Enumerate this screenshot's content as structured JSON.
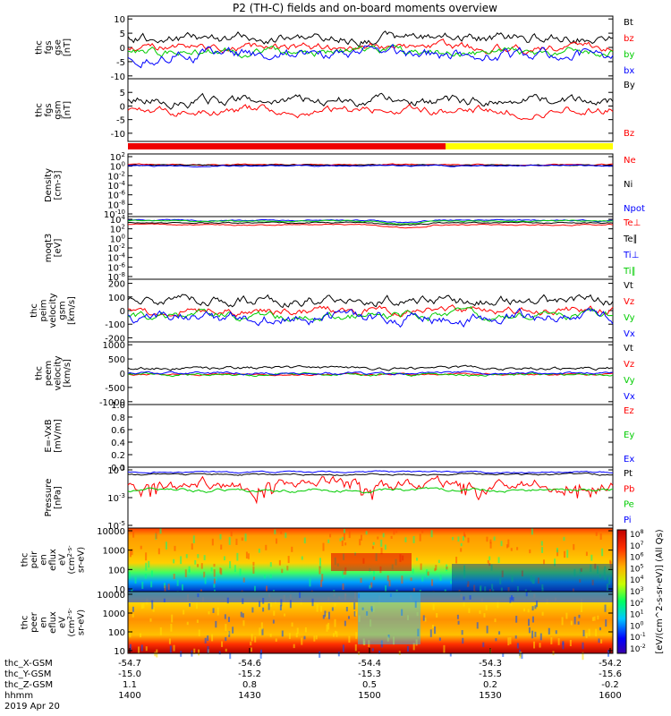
{
  "title": "P2 (TH-C) fields and on-board moments overview",
  "chart_data": {
    "type": "line",
    "title": "P2 (TH-C) fields and on-board moments overview",
    "panels": [
      {
        "ylabel": [
          "thc",
          "fgs",
          "gse",
          "[nT]"
        ],
        "ticks": [
          "10",
          "5",
          "0",
          "-5",
          "-10"
        ],
        "tickvals": [
          10,
          5,
          0,
          -5,
          -10
        ],
        "ylim": [
          -11,
          11
        ],
        "legend": [
          {
            "name": "Bt",
            "color": "#000000"
          },
          {
            "name": "bz",
            "color": "#ff0000"
          },
          {
            "name": "by",
            "color": "#00cc00"
          },
          {
            "name": "bx",
            "color": "#0000ff"
          }
        ]
      },
      {
        "ylabel": [
          "thc",
          "fgs",
          "gsm",
          "[nT]"
        ],
        "ticks": [
          "5",
          "0",
          "-5",
          "-10"
        ],
        "tickvals": [
          5,
          0,
          -5,
          -10
        ],
        "ylim": [
          -13,
          10
        ],
        "legend": [
          {
            "name": "By",
            "color": "#000000"
          },
          {
            "name": "Bz",
            "color": "#ff0000"
          }
        ]
      },
      {
        "ylabel": [
          "Density",
          "[cm-3]"
        ],
        "ticks": [
          "10^2",
          "10^0",
          "10^-2",
          "10^-4",
          "10^-6",
          "10^-8",
          "10^-10"
        ],
        "legend": [
          {
            "name": "Ne",
            "color": "#ff0000"
          },
          {
            "name": "Ni",
            "color": "#000000"
          },
          {
            "name": "Npot",
            "color": "#0000ff"
          }
        ]
      },
      {
        "ylabel": [
          "moqt3",
          "[eV]"
        ],
        "ticks": [
          "10^4",
          "10^2",
          "10^0",
          "10^-2",
          "10^-4",
          "10^-6",
          "10^-8"
        ],
        "legend": [
          {
            "name": "Te⊥",
            "color": "#ff0000"
          },
          {
            "name": "Te∥",
            "color": "#000000"
          },
          {
            "name": "Ti⊥",
            "color": "#0000ff"
          },
          {
            "name": "Ti∥",
            "color": "#00cc00"
          }
        ]
      },
      {
        "ylabel": [
          "thc",
          "peim",
          "velocity",
          "gsm",
          "[km/s]"
        ],
        "ticks": [
          "200",
          "100",
          "0",
          "-100",
          "-200"
        ],
        "tickvals": [
          200,
          100,
          0,
          -100,
          -200
        ],
        "ylim": [
          -230,
          230
        ],
        "legend": [
          {
            "name": "Vt",
            "color": "#000000"
          },
          {
            "name": "Vz",
            "color": "#ff0000"
          },
          {
            "name": "Vy",
            "color": "#00cc00"
          },
          {
            "name": "Vx",
            "color": "#0000ff"
          }
        ]
      },
      {
        "ylabel": [
          "thc",
          "peem",
          "velocity",
          "[km/s]"
        ],
        "ticks": [
          "1000",
          "500",
          "0",
          "-500",
          "-1000"
        ],
        "tickvals": [
          1000,
          500,
          0,
          -500,
          -1000
        ],
        "ylim": [
          -1100,
          1100
        ],
        "legend": [
          {
            "name": "Vt",
            "color": "#000000"
          },
          {
            "name": "Vz",
            "color": "#ff0000"
          },
          {
            "name": "Vy",
            "color": "#00cc00"
          },
          {
            "name": "Vx",
            "color": "#0000ff"
          }
        ]
      },
      {
        "ylabel": [
          "E=-VxB",
          "[mV/m]"
        ],
        "ticks": [
          "1.0",
          "0.8",
          "0.6",
          "0.4",
          "0.2",
          "0.0"
        ],
        "tickvals": [
          1.0,
          0.8,
          0.6,
          0.4,
          0.2,
          0.0
        ],
        "ylim": [
          0,
          1
        ],
        "legend": [
          {
            "name": "Ez",
            "color": "#ff0000"
          },
          {
            "name": "Ey",
            "color": "#00cc00"
          },
          {
            "name": "Ex",
            "color": "#0000ff"
          }
        ]
      },
      {
        "ylabel": [
          "Pressure",
          "[nPa]"
        ],
        "ticks": [
          "10^-1",
          "10^-3",
          "10^-5"
        ],
        "legend": [
          {
            "name": "Pt",
            "color": "#000000"
          },
          {
            "name": "Pb",
            "color": "#ff0000"
          },
          {
            "name": "Pe",
            "color": "#00cc00"
          },
          {
            "name": "Pi",
            "color": "#0000ff"
          }
        ]
      },
      {
        "ylabel": [
          "thc",
          "peir",
          "en",
          "eflux",
          "eV",
          "(cm^2-s-",
          "sr-eV)"
        ],
        "ticks": [
          "10000",
          "1000",
          "100",
          "10"
        ],
        "spectrogram": true
      },
      {
        "ylabel": [
          "thc",
          "peer",
          "en",
          "eflux",
          "eV",
          "(cm^2-s-",
          "sr-eV)"
        ],
        "ticks": [
          "10000",
          "1000",
          "100",
          "10"
        ],
        "spectrogram": true
      }
    ],
    "colorbar": {
      "label": "[eV/(cm^2-s-sr-eV)] (All Qs)",
      "ticks": [
        "10^8",
        "10^7",
        "10^6",
        "10^5",
        "10^4",
        "10^3",
        "10^2",
        "10^1",
        "10^0",
        "10^-1",
        "10^-2"
      ]
    },
    "mode_bar": [
      {
        "from": 0,
        "to": 0.655,
        "color": "#ee0000"
      },
      {
        "from": 0.655,
        "to": 1,
        "color": "#ffff00"
      }
    ],
    "x_axis": {
      "rows": [
        {
          "label": "thc_X-GSM",
          "values": [
            "-54.7",
            "-54.6",
            "-54.4",
            "-54.3",
            "-54.2"
          ]
        },
        {
          "label": "thc_Y-GSM",
          "values": [
            "-15.0",
            "-15.2",
            "-15.3",
            "-15.5",
            "-15.6"
          ]
        },
        {
          "label": "thc_Z-GSM",
          "values": [
            "1.1",
            "0.8",
            "0.5",
            "0.2",
            "-0.2"
          ]
        },
        {
          "label": "hhmm",
          "values": [
            "1400",
            "1430",
            "1500",
            "1530",
            "1600"
          ]
        }
      ],
      "date": "2019 Apr 20"
    }
  }
}
